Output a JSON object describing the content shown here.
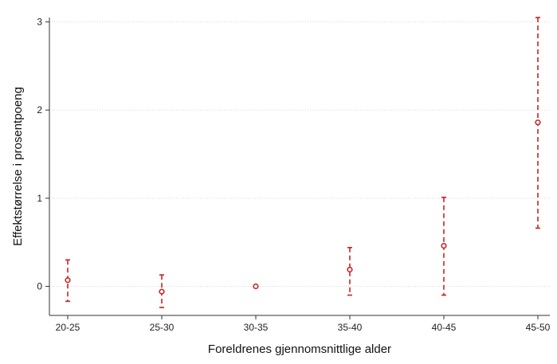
{
  "chart_data": {
    "type": "scatter",
    "title": "",
    "xlabel": "Foreldrenes gjennomsnittlige alder",
    "ylabel": "Effektstørrelse i prosentpoeng",
    "categories": [
      "20-25",
      "25-30",
      "30-35",
      "35-40",
      "40-45",
      "45-50"
    ],
    "ylim": [
      -0.33,
      3.05
    ],
    "yticks": [
      0,
      1,
      2,
      3
    ],
    "ytick_labels": [
      "0",
      "1",
      "2",
      "3"
    ],
    "grid": true,
    "series": [
      {
        "name": "Effektstørrelse",
        "color": "#cc2222",
        "points": [
          {
            "x": "20-25",
            "estimate": 0.07,
            "lower": -0.17,
            "upper": 0.3
          },
          {
            "x": "25-30",
            "estimate": -0.06,
            "lower": -0.24,
            "upper": 0.13
          },
          {
            "x": "30-35",
            "estimate": 0.0,
            "lower": 0.0,
            "upper": 0.0
          },
          {
            "x": "35-40",
            "estimate": 0.19,
            "lower": -0.1,
            "upper": 0.44
          },
          {
            "x": "40-45",
            "estimate": 0.46,
            "lower": -0.1,
            "upper": 1.01
          },
          {
            "x": "45-50",
            "estimate": 1.86,
            "lower": 0.66,
            "upper": 3.05
          }
        ]
      }
    ]
  }
}
